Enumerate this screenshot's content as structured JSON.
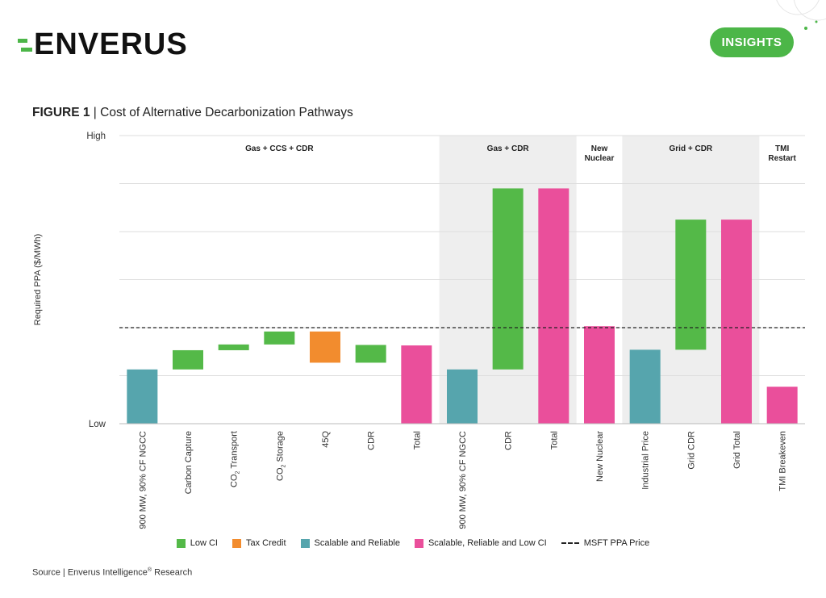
{
  "header": {
    "logo_text": "ENVERUS",
    "badge_label": "INSIGHTS"
  },
  "figure": {
    "label": "FIGURE 1",
    "separator": " | ",
    "title": "Cost of Alternative Decarbonization Pathways"
  },
  "source": {
    "text_before": "Source | Enverus Intelligence",
    "sup": "®",
    "text_after": " Research"
  },
  "colors": {
    "low_ci": "#54b948",
    "tax_credit": "#f28c2e",
    "scalable": "#56a5ad",
    "scalable_low_ci": "#ea4f9b",
    "band": "#eeeeee",
    "grid": "#dddddd"
  },
  "chart_data": {
    "type": "bar",
    "subtype": "waterfall",
    "ylabel": "Required PPA ($/MWh)",
    "y_tick_labels": [
      "High",
      "Low"
    ],
    "ylim": [
      0,
      6
    ],
    "groups": [
      {
        "label": "Gas + CCS + CDR",
        "shaded": false,
        "span": [
          0,
          6
        ]
      },
      {
        "label": "Gas + CDR",
        "shaded": true,
        "span": [
          7,
          9
        ]
      },
      {
        "label": "New Nuclear",
        "shaded": false,
        "span": [
          10,
          10
        ]
      },
      {
        "label": "Grid + CDR",
        "shaded": true,
        "span": [
          11,
          13
        ]
      },
      {
        "label": "TMI Restart",
        "shaded": false,
        "span": [
          14,
          14
        ]
      }
    ],
    "categories": [
      "900 MW, 90% CF NGCC",
      "Carbon Capture",
      "CO2 Transport",
      "CO2 Storage",
      "45Q",
      "CDR",
      "Total",
      "900 MW, 90% CF NGCC",
      "CDR",
      "Total",
      "New Nuclear",
      "Industrial Price",
      "Grid CDR",
      "Grid Total",
      "TMI Breakeven"
    ],
    "bars": [
      {
        "start": 0,
        "end": 1.13,
        "series": "Scalable and Reliable"
      },
      {
        "start": 1.13,
        "end": 1.53,
        "series": "Low CI"
      },
      {
        "start": 1.53,
        "end": 1.65,
        "series": "Low CI"
      },
      {
        "start": 1.65,
        "end": 1.92,
        "series": "Low CI"
      },
      {
        "start": 1.27,
        "end": 1.92,
        "series": "Tax Credit"
      },
      {
        "start": 1.27,
        "end": 1.64,
        "series": "Low CI"
      },
      {
        "start": 0,
        "end": 1.63,
        "series": "Scalable, Reliable and Low CI"
      },
      {
        "start": 0,
        "end": 1.13,
        "series": "Scalable and Reliable"
      },
      {
        "start": 1.13,
        "end": 4.9,
        "series": "Low CI"
      },
      {
        "start": 0,
        "end": 4.9,
        "series": "Scalable, Reliable and Low CI"
      },
      {
        "start": 0,
        "end": 2.03,
        "series": "Scalable, Reliable and Low CI"
      },
      {
        "start": 0,
        "end": 1.54,
        "series": "Scalable and Reliable"
      },
      {
        "start": 1.54,
        "end": 4.25,
        "series": "Low CI"
      },
      {
        "start": 0,
        "end": 4.25,
        "series": "Scalable, Reliable and Low CI"
      },
      {
        "start": 0,
        "end": 0.77,
        "series": "Scalable, Reliable and Low CI"
      }
    ],
    "reference_line": {
      "name": "MSFT PPA Price",
      "value": 2.0
    },
    "legend": [
      {
        "name": "Low CI",
        "color": "#54b948",
        "kind": "box"
      },
      {
        "name": "Tax Credit",
        "color": "#f28c2e",
        "kind": "box"
      },
      {
        "name": "Scalable and Reliable",
        "color": "#56a5ad",
        "kind": "box"
      },
      {
        "name": "Scalable, Reliable and Low CI",
        "color": "#ea4f9b",
        "kind": "box"
      },
      {
        "name": "MSFT PPA Price",
        "color": "#222222",
        "kind": "dash"
      }
    ],
    "grid": true,
    "legend_position": "bottom"
  }
}
